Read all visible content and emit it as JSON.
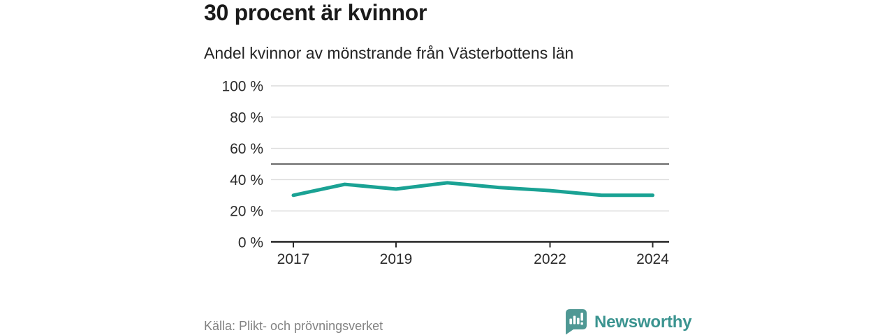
{
  "header": {
    "title": "30 procent är kvinnor",
    "subtitle": "Andel kvinnor av mönstrande från Västerbottens län"
  },
  "chart_data": {
    "type": "line",
    "title": "30 procent är kvinnor",
    "subtitle": "Andel kvinnor av mönstrande från Västerbottens län",
    "x": [
      2017,
      2018,
      2019,
      2020,
      2021,
      2022,
      2023,
      2024
    ],
    "series": [
      {
        "name": "Andel kvinnor av mönstrande",
        "values": [
          30,
          37,
          34,
          38,
          35,
          33,
          30,
          30
        ]
      }
    ],
    "unit": "%",
    "ylim": [
      0,
      100
    ],
    "y_ticks": [
      0,
      20,
      40,
      60,
      80,
      100
    ],
    "y_tick_suffix": " %",
    "x_ticks": [
      2017,
      2019,
      2022,
      2024
    ],
    "reference_line": 50,
    "grid": "horizontal",
    "legend": "none",
    "line_color": "#1aa294",
    "gridline_color": "#dcdcdc",
    "reference_line_color": "#6a6a6a",
    "axis_color": "#2b2b2b"
  },
  "footer": {
    "source": "Källa: Plikt- och prövningsverket",
    "brand": "Newsworthy"
  },
  "colors": {
    "accent": "#1aa294",
    "brand_badge": "#4f9894",
    "brand_text": "#3b9490",
    "title_text": "#1a1a1a",
    "muted_text": "#828282"
  },
  "icons": {
    "brand_logo": "bar-chart-exclamation-speech-bubble"
  }
}
